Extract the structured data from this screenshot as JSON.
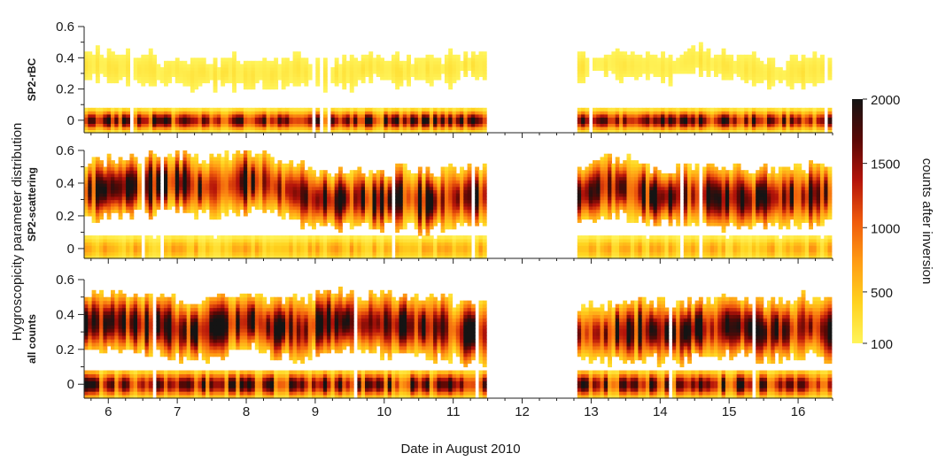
{
  "chart_data": {
    "type": "heatmap",
    "ylabel": "Hygroscopicity parameter distribution",
    "xlabel": "Date in August 2010",
    "x_ticks": [
      "6",
      "7",
      "8",
      "9",
      "10",
      "11",
      "12",
      "13",
      "14",
      "15",
      "16"
    ],
    "xlim": [
      5.65,
      16.5
    ],
    "data_gap": [
      11.5,
      12.75
    ],
    "panels": [
      {
        "label": "SP2-rBC",
        "ylim": [
          -0.08,
          0.6
        ],
        "y_ticks": [
          "0",
          "0.2",
          "0.4",
          "0.6"
        ],
        "y_tick_values": [
          0,
          0.2,
          0.4,
          0.6
        ],
        "modes": [
          {
            "center": 0.0,
            "width": 0.1,
            "peak_counts": 1900
          },
          {
            "center": 0.35,
            "width": 0.2,
            "peak_counts": 250
          }
        ]
      },
      {
        "label": "SP2-scattering",
        "ylim": [
          -0.06,
          0.6
        ],
        "y_ticks": [
          "0",
          "0.2",
          "0.4",
          "0.6"
        ],
        "y_tick_values": [
          0,
          0.2,
          0.4,
          0.6
        ],
        "modes": [
          {
            "center": 0.0,
            "width": 0.12,
            "peak_counts": 700
          },
          {
            "center": 0.35,
            "width": 0.3,
            "peak_counts": 2000
          }
        ]
      },
      {
        "label": "all counts",
        "ylim": [
          -0.08,
          0.6
        ],
        "y_ticks": [
          "0",
          "0.2",
          "0.4",
          "0.6"
        ],
        "y_tick_values": [
          0,
          0.2,
          0.4,
          0.6
        ],
        "modes": [
          {
            "center": 0.0,
            "width": 0.12,
            "peak_counts": 1900
          },
          {
            "center": 0.35,
            "width": 0.28,
            "peak_counts": 2000
          }
        ]
      }
    ],
    "colorbar": {
      "label": "counts after inversion",
      "ticks": [
        "2000",
        "1500",
        "1000",
        "500",
        "100"
      ],
      "tick_values": [
        2000,
        1500,
        1000,
        500,
        100
      ],
      "range": [
        100,
        2000
      ],
      "colors": [
        "#fff45a",
        "#ffd21e",
        "#ff9c14",
        "#ef5a0c",
        "#b4140a",
        "#5a0805",
        "#141414"
      ]
    }
  }
}
